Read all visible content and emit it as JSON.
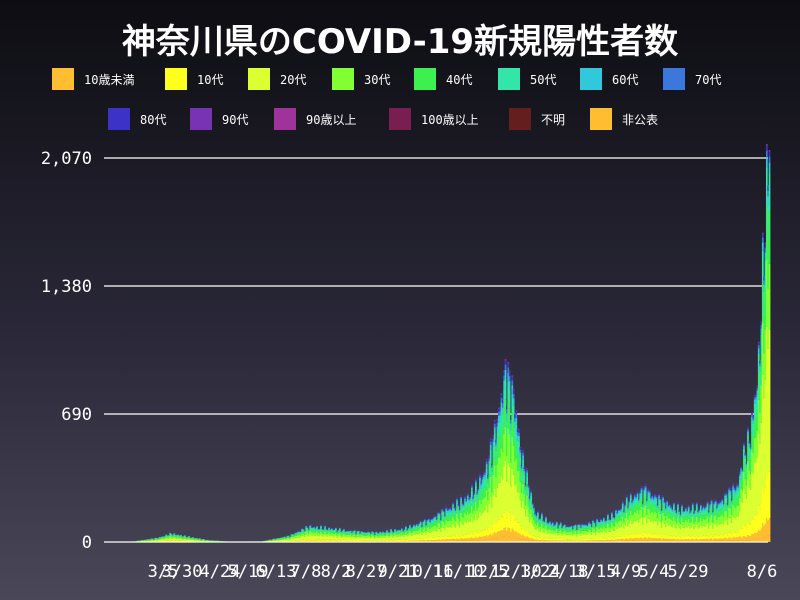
{
  "chart_data": {
    "type": "bar",
    "stacked": true,
    "title": "神奈川県のCOVID-19新規陽性者数",
    "legend_placement": "top",
    "grid": true,
    "y_ticks": [
      0,
      690,
      1380,
      2070
    ],
    "y_tick_labels": [
      "0",
      "690",
      "1,380",
      "2,070"
    ],
    "ylim": [
      0,
      2070
    ],
    "x_tick_labels": [
      "3/5",
      "3/30",
      "4/24",
      "5/19",
      "6/13",
      "7/8",
      "8/2",
      "8/27",
      "9/21",
      "10/16",
      "11/10",
      "12/5",
      "12/30",
      "1/24",
      "2/18",
      "3/15",
      "4/9",
      "5/4",
      "5/29",
      "8/6"
    ],
    "series": [
      {
        "name": "10歳未満",
        "color": "#ffbe32"
      },
      {
        "name": "10代",
        "color": "#ffff1e"
      },
      {
        "name": "20代",
        "color": "#dcff32"
      },
      {
        "name": "30代",
        "color": "#82ff32"
      },
      {
        "name": "40代",
        "color": "#3cf050"
      },
      {
        "name": "50代",
        "color": "#32e6aa"
      },
      {
        "name": "60代",
        "color": "#32c8dc"
      },
      {
        "name": "70代",
        "color": "#3c78dc"
      },
      {
        "name": "80代",
        "color": "#3c32c8"
      },
      {
        "name": "90代",
        "color": "#7832b4"
      },
      {
        "name": "90歳以上",
        "color": "#a0329b"
      },
      {
        "name": "100歳以上",
        "color": "#781e50"
      },
      {
        "name": "不明",
        "color": "#641e1e"
      },
      {
        "name": "非公表",
        "color": "#ffbe32"
      }
    ],
    "trend_keypoints": [
      {
        "day": 0,
        "total": 0
      },
      {
        "day": 20,
        "total": 5
      },
      {
        "day": 38,
        "total": 25
      },
      {
        "day": 48,
        "total": 50
      },
      {
        "day": 58,
        "total": 35
      },
      {
        "day": 75,
        "total": 12
      },
      {
        "day": 95,
        "total": 2
      },
      {
        "day": 115,
        "total": 5
      },
      {
        "day": 135,
        "total": 35
      },
      {
        "day": 150,
        "total": 90
      },
      {
        "day": 165,
        "total": 80
      },
      {
        "day": 180,
        "total": 65
      },
      {
        "day": 200,
        "total": 55
      },
      {
        "day": 220,
        "total": 75
      },
      {
        "day": 240,
        "total": 130
      },
      {
        "day": 255,
        "total": 200
      },
      {
        "day": 265,
        "total": 240
      },
      {
        "day": 275,
        "total": 320
      },
      {
        "day": 283,
        "total": 450
      },
      {
        "day": 290,
        "total": 700
      },
      {
        "day": 296,
        "total": 980
      },
      {
        "day": 302,
        "total": 850
      },
      {
        "day": 308,
        "total": 500
      },
      {
        "day": 318,
        "total": 170
      },
      {
        "day": 330,
        "total": 110
      },
      {
        "day": 345,
        "total": 90
      },
      {
        "day": 360,
        "total": 110
      },
      {
        "day": 375,
        "total": 150
      },
      {
        "day": 390,
        "total": 260
      },
      {
        "day": 400,
        "total": 300
      },
      {
        "day": 412,
        "total": 240
      },
      {
        "day": 425,
        "total": 190
      },
      {
        "day": 440,
        "total": 200
      },
      {
        "day": 455,
        "total": 230
      },
      {
        "day": 468,
        "total": 330
      },
      {
        "day": 478,
        "total": 550
      },
      {
        "day": 484,
        "total": 900
      },
      {
        "day": 488,
        "total": 1500
      },
      {
        "day": 491,
        "total": 1950
      },
      {
        "day": 492,
        "total": 2070
      }
    ]
  }
}
